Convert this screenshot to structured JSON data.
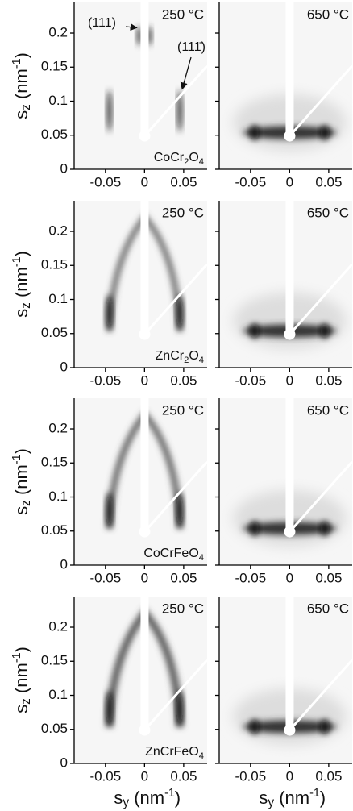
{
  "chart_data": [
    {
      "type": "heatmap",
      "temperature": "250 °C",
      "sample": [
        "CoCr",
        {
          "sub": "2"
        },
        "O",
        {
          "sub": "4"
        }
      ],
      "annotations": [
        "(111)",
        "(111̄)"
      ],
      "ylabel": [
        "s",
        {
          "sub": "z"
        },
        " (nm",
        {
          "sup": "-1"
        },
        ")"
      ],
      "xlim": [
        -0.09,
        0.08
      ],
      "ylim": [
        0,
        0.245
      ],
      "xticks": [
        -0.05,
        0,
        0.05
      ],
      "yticks": [
        0,
        0.05,
        0.1,
        0.15,
        0.2
      ],
      "show_ytick_labels": true
    },
    {
      "type": "heatmap",
      "temperature": "650 °C",
      "xlim": [
        -0.09,
        0.08
      ],
      "ylim": [
        0,
        0.245
      ],
      "xticks": [
        -0.05,
        0,
        0.05
      ],
      "yticks": [
        0,
        0.05,
        0.1,
        0.15,
        0.2
      ],
      "show_ytick_labels": false
    },
    {
      "type": "heatmap",
      "temperature": "250 °C",
      "sample": [
        "ZnCr",
        {
          "sub": "2"
        },
        "O",
        {
          "sub": "4"
        }
      ],
      "ylabel": [
        "s",
        {
          "sub": "z"
        },
        " (nm",
        {
          "sup": "-1"
        },
        ")"
      ],
      "xlim": [
        -0.09,
        0.08
      ],
      "ylim": [
        0,
        0.245
      ],
      "xticks": [
        -0.05,
        0,
        0.05
      ],
      "yticks": [
        0,
        0.05,
        0.1,
        0.15,
        0.2
      ],
      "show_ytick_labels": true
    },
    {
      "type": "heatmap",
      "temperature": "650 °C",
      "xlim": [
        -0.09,
        0.08
      ],
      "ylim": [
        0,
        0.245
      ],
      "xticks": [
        -0.05,
        0,
        0.05
      ],
      "yticks": [
        0,
        0.05,
        0.1,
        0.15,
        0.2
      ],
      "show_ytick_labels": false
    },
    {
      "type": "heatmap",
      "temperature": "250 °C",
      "sample": [
        "CoCrFeO",
        {
          "sub": "4"
        }
      ],
      "ylabel": [
        "s",
        {
          "sub": "z"
        },
        " (nm",
        {
          "sup": "-1"
        },
        ")"
      ],
      "xlim": [
        -0.09,
        0.08
      ],
      "ylim": [
        0,
        0.245
      ],
      "xticks": [
        -0.05,
        0,
        0.05
      ],
      "yticks": [
        0,
        0.05,
        0.1,
        0.15,
        0.2
      ],
      "show_ytick_labels": true
    },
    {
      "type": "heatmap",
      "temperature": "650 °C",
      "xlim": [
        -0.09,
        0.08
      ],
      "ylim": [
        0,
        0.245
      ],
      "xticks": [
        -0.05,
        0,
        0.05
      ],
      "yticks": [
        0,
        0.05,
        0.1,
        0.15,
        0.2
      ],
      "show_ytick_labels": false
    },
    {
      "type": "heatmap",
      "temperature": "250 °C",
      "sample": [
        "ZnCrFeO",
        {
          "sub": "4"
        }
      ],
      "ylabel": [
        "s",
        {
          "sub": "z"
        },
        " (nm",
        {
          "sup": "-1"
        },
        ")"
      ],
      "xlabel": [
        "s",
        {
          "sub": "y"
        },
        " (nm",
        {
          "sup": "-1"
        },
        ")"
      ],
      "xlim": [
        -0.09,
        0.08
      ],
      "ylim": [
        0,
        0.245
      ],
      "xticks": [
        -0.05,
        0,
        0.05
      ],
      "yticks": [
        0,
        0.05,
        0.1,
        0.15,
        0.2
      ],
      "show_ytick_labels": true
    },
    {
      "type": "heatmap",
      "temperature": "650 °C",
      "xlabel": [
        "s",
        {
          "sub": "y"
        },
        " (nm",
        {
          "sup": "-1"
        },
        ")"
      ],
      "xlim": [
        -0.09,
        0.08
      ],
      "ylim": [
        0,
        0.245
      ],
      "xticks": [
        -0.05,
        0,
        0.05
      ],
      "yticks": [
        0,
        0.05,
        0.1,
        0.15,
        0.2
      ],
      "show_ytick_labels": false
    }
  ]
}
